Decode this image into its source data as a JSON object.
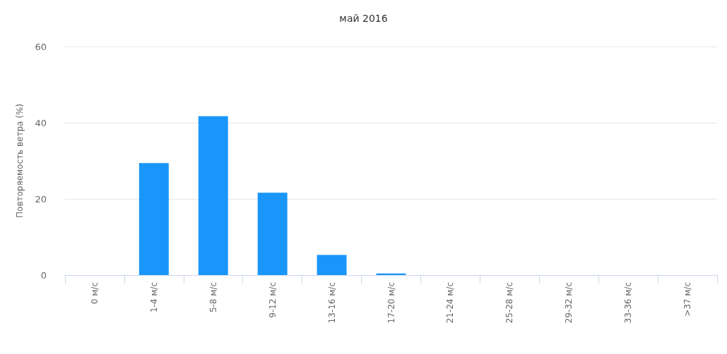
{
  "chart_data": {
    "type": "bar",
    "title": "май 2016",
    "ylabel": "Повторяемость ветра (%)",
    "categories": [
      "0 м/с",
      "1-4 м/с",
      "5-8 м/с",
      "9-12 м/с",
      "13-16 м/с",
      "17-20 м/с",
      "21-24 м/с",
      "25-28 м/с",
      "29-32 м/с",
      "33-36 м/с",
      ">37 м/с"
    ],
    "values": [
      0,
      29.4,
      41.7,
      21.6,
      5.3,
      0.4,
      0,
      0,
      0,
      0,
      0
    ],
    "color": "#1a96fa",
    "ylim": [
      0,
      60
    ],
    "yticks": [
      0,
      20,
      40,
      60
    ],
    "grid": "y"
  }
}
